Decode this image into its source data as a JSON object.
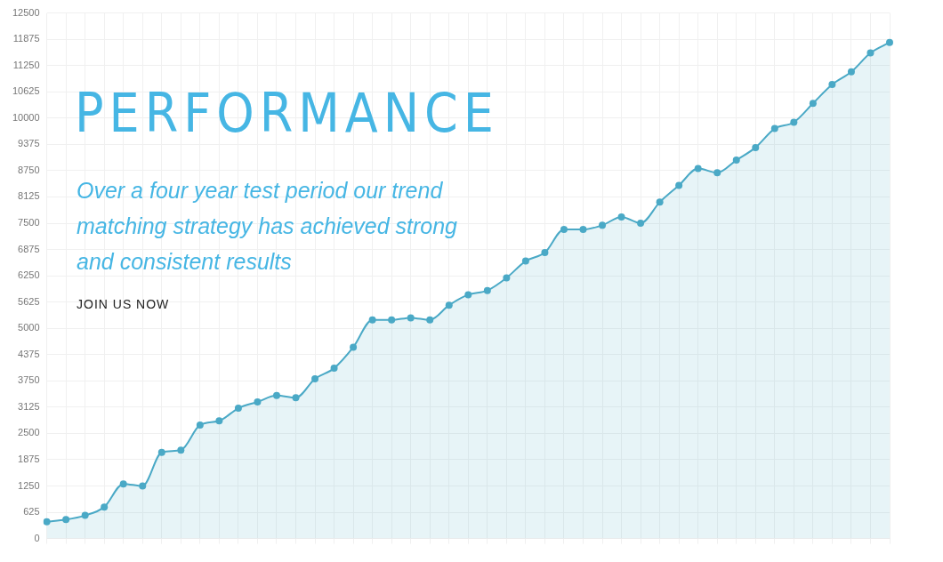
{
  "chart_data": {
    "type": "area",
    "title": "PERFORMANCE",
    "subtitle": "Over a four year test period our trend matching strategy has achieved strong and consistent results",
    "annotations": [
      "JOIN US NOW"
    ],
    "categories": [
      null,
      null,
      null,
      null,
      null,
      null,
      null,
      null,
      null,
      null,
      null,
      null,
      null,
      null,
      null,
      null,
      null,
      null,
      null,
      null,
      null,
      null,
      null,
      null,
      null,
      null,
      null,
      null,
      null,
      null,
      null,
      null,
      null,
      null,
      null,
      null,
      null,
      null,
      null,
      null,
      null,
      null,
      null,
      null,
      null
    ],
    "series": [
      {
        "color": "#4aa9c6",
        "values": [
          400,
          450,
          550,
          750,
          1300,
          1250,
          2050,
          2100,
          2700,
          2800,
          3100,
          3250,
          3400,
          3350,
          3800,
          4050,
          4550,
          5200,
          5200,
          5250,
          5200,
          5550,
          5800,
          5900,
          6200,
          6600,
          6800,
          7350,
          7350,
          7450,
          7650,
          7500,
          8000,
          8400,
          8800,
          8700,
          9000,
          9300,
          9750,
          9900,
          10350,
          10800,
          11100,
          11550,
          11800
        ]
      }
    ],
    "ylim": [
      0,
      12500
    ],
    "yticks": [
      0,
      625,
      1250,
      1875,
      2500,
      3125,
      3750,
      4375,
      5000,
      5625,
      6250,
      6875,
      7500,
      8125,
      8750,
      9375,
      10000,
      10625,
      11250,
      11875,
      12500
    ],
    "grid": true,
    "legend": false,
    "marker": "circle",
    "line_style": "solid"
  }
}
